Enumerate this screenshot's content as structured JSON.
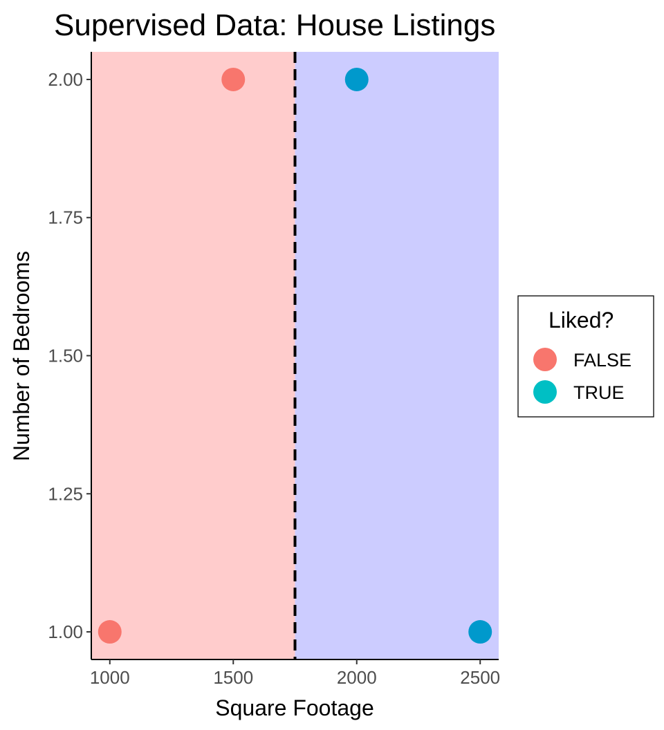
{
  "chart_data": {
    "type": "scatter",
    "title": "Supervised Data: House Listings",
    "xlabel": "Square Footage",
    "ylabel": "Number of Bedrooms",
    "xlim": [
      925,
      2575
    ],
    "ylim": [
      0.95,
      2.05
    ],
    "x_ticks": [
      1000,
      1500,
      2000,
      2500
    ],
    "x_tick_labels": [
      "1000",
      "1500",
      "2000",
      "2500"
    ],
    "y_ticks": [
      1.0,
      1.25,
      1.5,
      1.75,
      2.0
    ],
    "y_tick_labels": [
      "1.00",
      "1.25",
      "1.50",
      "1.75",
      "2.00"
    ],
    "grid": false,
    "decision_boundary": {
      "x": 1750,
      "style": "dashed",
      "color": "#000000"
    },
    "regions": [
      {
        "from": 925,
        "to": 1750,
        "color": "#ffcccc"
      },
      {
        "from": 1750,
        "to": 2575,
        "color": "#ccccff"
      }
    ],
    "points": [
      {
        "x": 1000,
        "y": 1.0,
        "liked": "FALSE",
        "color": "#f8766d"
      },
      {
        "x": 1500,
        "y": 2.0,
        "liked": "FALSE",
        "color": "#f8766d"
      },
      {
        "x": 2000,
        "y": 2.0,
        "liked": "TRUE",
        "color": "#0099cc"
      },
      {
        "x": 2500,
        "y": 1.0,
        "liked": "TRUE",
        "color": "#0099cc"
      }
    ],
    "legend": {
      "title": "Liked?",
      "placement": "right",
      "entries": [
        {
          "label": "FALSE",
          "color": "#f8766d"
        },
        {
          "label": "TRUE",
          "color": "#00bfc4"
        }
      ]
    }
  }
}
